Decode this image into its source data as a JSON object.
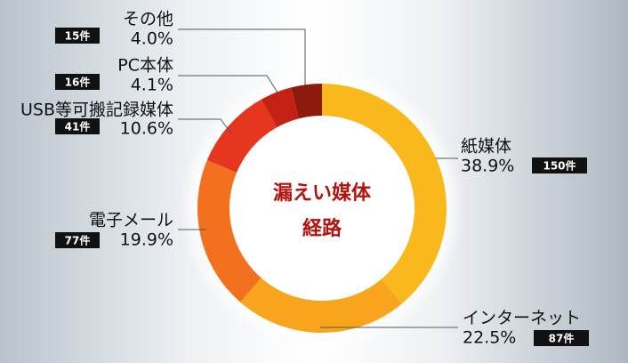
{
  "chart_data": {
    "type": "donut",
    "title_lines": [
      "漏えい媒体",
      "経路"
    ],
    "categories": [
      "紙媒体",
      "インターネット",
      "電子メール",
      "USB等可搬記録媒体",
      "PC本体",
      "その他"
    ],
    "values": [
      38.9,
      22.5,
      19.9,
      10.6,
      4.1,
      4.0
    ],
    "value_labels": [
      "38.9%",
      "22.5%",
      "19.9%",
      "10.6%",
      "4.1%",
      "4.0%"
    ],
    "counts": [
      150,
      87,
      77,
      41,
      16,
      15
    ],
    "count_labels": [
      "150件",
      "87件",
      "77件",
      "41件",
      "16件",
      "15件"
    ],
    "colors": [
      "#f9b91c",
      "#f8a51d",
      "#f2701e",
      "#e6361f",
      "#c32112",
      "#8c1a0d"
    ]
  }
}
